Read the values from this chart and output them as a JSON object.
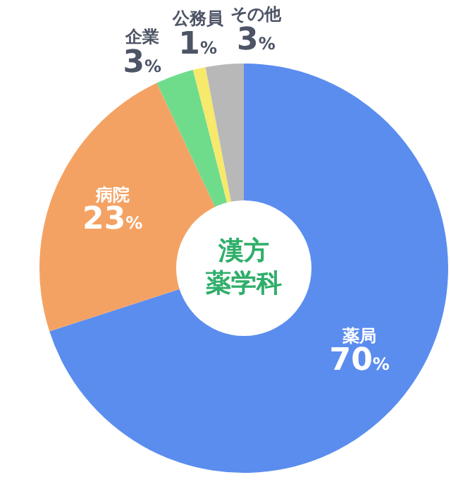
{
  "chart_data": {
    "type": "donut",
    "title": "漢方薬学科",
    "categories": [
      "薬局",
      "病院",
      "企業",
      "公務員",
      "その他"
    ],
    "values": [
      70,
      23,
      3,
      1,
      3
    ],
    "value_labels": [
      "70%",
      "23%",
      "3%",
      "1%",
      "3%"
    ],
    "colors": [
      "#5b8def",
      "#f4a263",
      "#6fdc8c",
      "#f6e96b",
      "#b8b8b8"
    ]
  }
}
